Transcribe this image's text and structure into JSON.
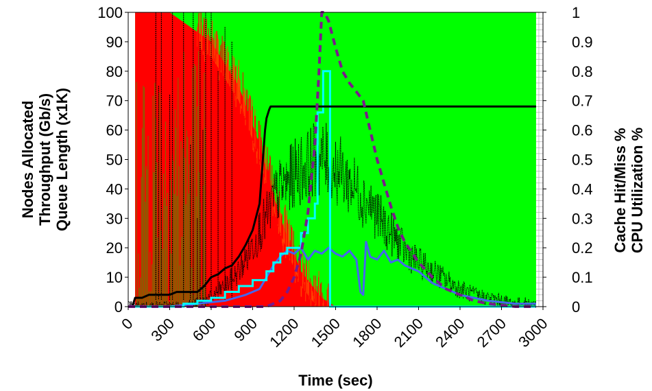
{
  "chart_data": {
    "type": "line",
    "xlabel": "Time (sec)",
    "ylabel_left": [
      "Nodes Allocated",
      "Throughput (Gb/s)",
      "Queue Length (x1K)"
    ],
    "ylabel_right": [
      "Cache Hit/Miss %",
      "CPU Utilization %"
    ],
    "xlim": [
      0,
      3000
    ],
    "ylim_left": [
      0,
      100
    ],
    "ylim_right": [
      0,
      1
    ],
    "x_ticks": [
      "0",
      "300",
      "600",
      "900",
      "1200",
      "1500",
      "1800",
      "2100",
      "2400",
      "2700",
      "3000"
    ],
    "y_left_ticks": [
      "0",
      "10",
      "20",
      "30",
      "40",
      "50",
      "60",
      "70",
      "80",
      "90",
      "100"
    ],
    "y_right_ticks": [
      "0",
      "0.1",
      "0.2",
      "0.3",
      "0.4",
      "0.5",
      "0.6",
      "0.7",
      "0.8",
      "0.9",
      "1"
    ],
    "legend": "none",
    "background": {
      "miss_red_end": [
        [
          50,
          1.0
        ],
        [
          300,
          1.0
        ],
        [
          600,
          0.9
        ],
        [
          800,
          0.75
        ],
        [
          950,
          0.55
        ],
        [
          1100,
          0.3
        ],
        [
          1250,
          0.12
        ],
        [
          1400,
          0.03
        ],
        [
          1500,
          0
        ]
      ],
      "red_color": "#ff0000",
      "green_color": "#00ff00",
      "grid_color": "#9e9e9e"
    },
    "series": [
      {
        "axis": "left",
        "color": "#000000",
        "style": "solid",
        "width": 3,
        "x": [
          0,
          30,
          50,
          100,
          150,
          300,
          350,
          500,
          550,
          600,
          650,
          700,
          750,
          800,
          850,
          900,
          950,
          990,
          1000,
          1020,
          1030,
          2950
        ],
        "y": [
          0,
          0,
          3,
          3,
          4,
          4,
          5,
          5,
          7,
          10,
          11,
          13,
          14,
          17,
          21,
          26,
          35,
          60,
          64,
          67,
          68,
          68
        ]
      },
      {
        "axis": "left",
        "color": "#00ffff",
        "style": "step",
        "width": 3,
        "x": [
          0,
          400,
          500,
          600,
          700,
          800,
          900,
          1000,
          1050,
          1100,
          1150,
          1250,
          1300,
          1350,
          1370,
          1400,
          1410,
          1450,
          1460,
          1700,
          2950
        ],
        "y": [
          0,
          1,
          2,
          3,
          5,
          7,
          9,
          12,
          15,
          18,
          20,
          25,
          30,
          35,
          66,
          66,
          80,
          80,
          0,
          0,
          0
        ]
      },
      {
        "axis": "left",
        "color": "#4466ee",
        "style": "solid",
        "width": 3,
        "x": [
          0,
          300,
          500,
          700,
          850,
          950,
          1000,
          1050,
          1100,
          1150,
          1200,
          1250,
          1300,
          1350,
          1400,
          1450,
          1500,
          1550,
          1600,
          1650,
          1680,
          1700,
          1720,
          1750,
          1800,
          1850,
          1900,
          1950,
          2000,
          2050,
          2100,
          2150,
          2200,
          2300,
          2400,
          2500,
          2600,
          2800,
          2950
        ],
        "y": [
          0,
          0,
          1,
          2,
          4,
          6,
          10,
          14,
          17,
          19,
          18,
          20,
          16,
          19,
          18,
          20,
          18,
          17,
          19,
          16,
          5,
          4,
          22,
          17,
          16,
          19,
          15,
          16,
          14,
          13,
          12,
          10,
          8,
          6,
          4,
          3,
          2,
          1,
          1
        ]
      },
      {
        "axis": "left",
        "color": "#000000",
        "style": "dotted-noisy",
        "width": 1,
        "x": [
          0,
          200,
          400,
          500,
          600,
          700,
          800,
          850,
          900,
          950,
          1000,
          1050,
          1100,
          1150,
          1200,
          1250,
          1300,
          1350,
          1400,
          1450,
          1500,
          1550,
          1600,
          1650,
          1700,
          1750,
          1800,
          1850,
          1900,
          1950,
          2000,
          2100,
          2200,
          2300,
          2400,
          2500,
          2600,
          2700,
          2800,
          2950
        ],
        "y": [
          0,
          0,
          0,
          1,
          3,
          7,
          12,
          16,
          21,
          26,
          30,
          36,
          40,
          42,
          45,
          47,
          48,
          50,
          50,
          49,
          47,
          45,
          42,
          40,
          37,
          35,
          31,
          28,
          25,
          22,
          19,
          15,
          12,
          9,
          6,
          4,
          3,
          2,
          1,
          1
        ]
      },
      {
        "axis": "left",
        "color": "#000000",
        "style": "spikes",
        "width": 1,
        "x": [
          200,
          220,
          240,
          300,
          320,
          400,
          450,
          470,
          500,
          520,
          540,
          560,
          600,
          650,
          700,
          750
        ],
        "y": [
          100,
          75,
          100,
          72,
          100,
          100,
          55,
          100,
          30,
          90,
          60,
          100,
          100,
          80,
          95,
          90
        ]
      },
      {
        "axis": "right",
        "color": "#7a1a8a",
        "style": "dashed",
        "width": 4,
        "x": [
          0,
          300,
          600,
          900,
          1000,
          1050,
          1100,
          1150,
          1200,
          1250,
          1300,
          1350,
          1380,
          1400,
          1420,
          1450,
          1500,
          1550,
          1600,
          1650,
          1700,
          1750,
          1800,
          1850,
          1900,
          1950,
          2000,
          2100,
          2200,
          2300,
          2400,
          2500,
          2600,
          2700,
          2800,
          2950
        ],
        "y": [
          0,
          0,
          0,
          0,
          0,
          0.01,
          0.02,
          0.05,
          0.1,
          0.18,
          0.32,
          0.55,
          0.8,
          1.0,
          1.0,
          0.97,
          0.88,
          0.8,
          0.76,
          0.73,
          0.7,
          0.6,
          0.5,
          0.42,
          0.34,
          0.27,
          0.22,
          0.15,
          0.1,
          0.06,
          0.04,
          0.02,
          0.01,
          0.005,
          0,
          0
        ]
      }
    ]
  }
}
